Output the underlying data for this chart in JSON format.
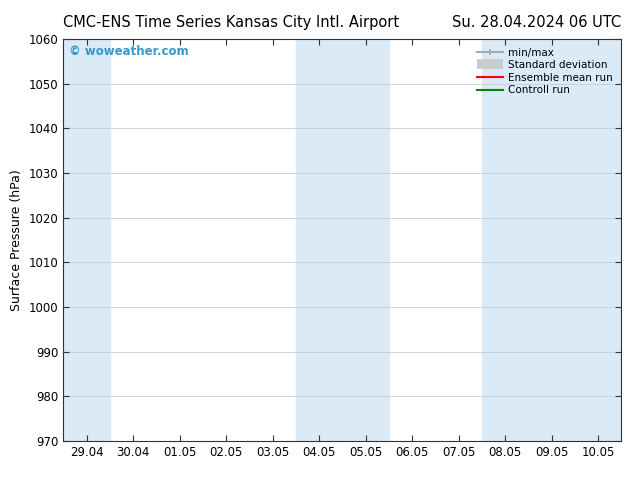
{
  "title_left": "CMC-ENS Time Series Kansas City Intl. Airport",
  "title_right": "Su. 28.04.2024 06 UTC",
  "ylabel": "Surface Pressure (hPa)",
  "ylim": [
    970,
    1060
  ],
  "yticks": [
    970,
    980,
    990,
    1000,
    1010,
    1020,
    1030,
    1040,
    1050,
    1060
  ],
  "x_tick_labels": [
    "29.04",
    "30.04",
    "01.05",
    "02.05",
    "03.05",
    "04.05",
    "05.05",
    "06.05",
    "07.05",
    "08.05",
    "09.05",
    "10.05"
  ],
  "x_tick_positions": [
    0,
    1,
    2,
    3,
    4,
    5,
    6,
    7,
    8,
    9,
    10,
    11
  ],
  "shaded_bands": [
    {
      "x_start": -0.5,
      "x_end": 0.5
    },
    {
      "x_start": 4.5,
      "x_end": 6.5
    },
    {
      "x_start": 8.5,
      "x_end": 11.5
    }
  ],
  "band_color": "#daeaf7",
  "watermark_text": "© woweather.com",
  "watermark_color": "#3399cc",
  "legend_entries": [
    {
      "label": "min/max",
      "color": "#aaaaaa",
      "linestyle": "-",
      "linewidth": 1.5
    },
    {
      "label": "Standard deviation",
      "color": "#cccccc",
      "linestyle": "-",
      "linewidth": 7
    },
    {
      "label": "Ensemble mean run",
      "color": "#ff0000",
      "linestyle": "-",
      "linewidth": 1.5
    },
    {
      "label": "Controll run",
      "color": "#008800",
      "linestyle": "-",
      "linewidth": 1.5
    }
  ],
  "bg_color": "#ffffff",
  "grid_color": "#cccccc",
  "spine_color": "#333333",
  "title_fontsize": 10.5,
  "axis_fontsize": 9,
  "tick_fontsize": 8.5,
  "xlim_left": -0.5,
  "xlim_right": 11.5
}
